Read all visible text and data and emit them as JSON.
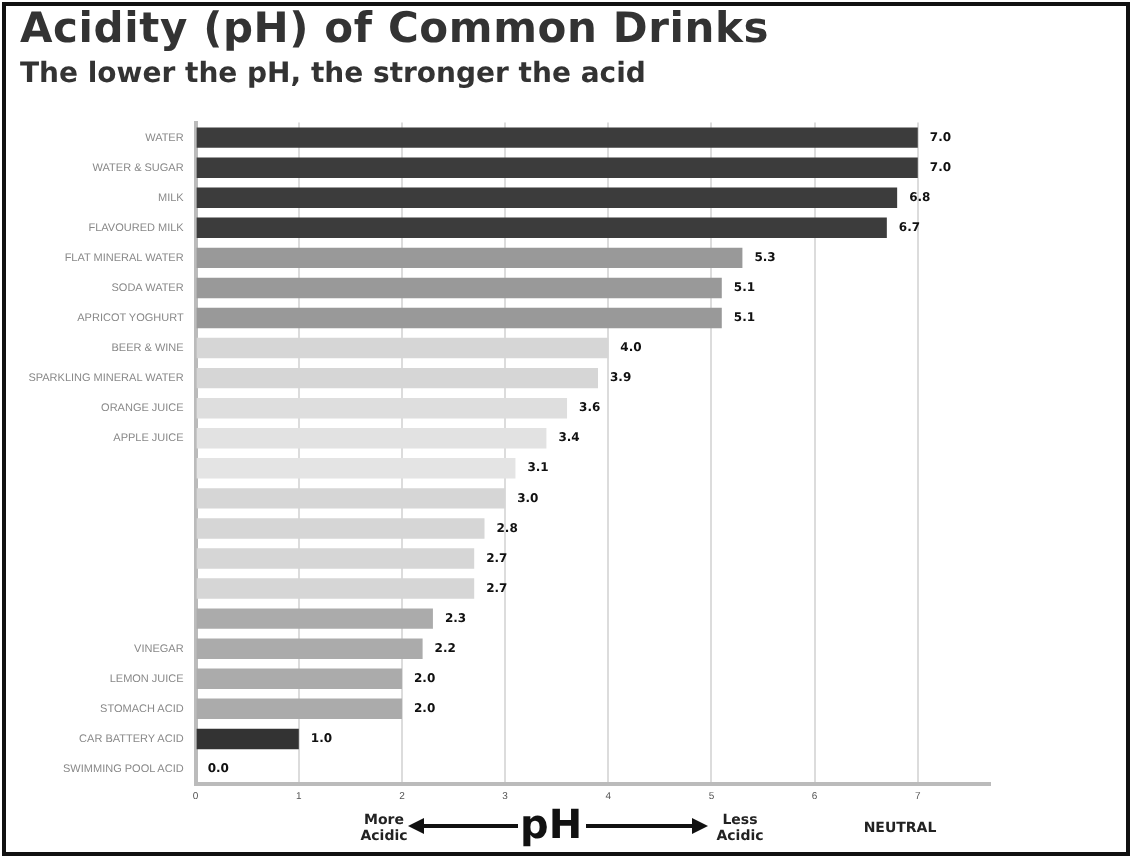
{
  "chart_data": {
    "type": "bar",
    "orientation": "horizontal",
    "title": "Acidity (pH) of Common Drinks",
    "subtitle": "The lower the pH, the stronger the acid",
    "xlabel": "pH",
    "categories": [
      "WATER",
      "WATER & SUGAR",
      "MILK",
      "FLAVOURED MILK",
      "FLAT MINERAL WATER",
      "SODA WATER",
      "APRICOT YOGHURT",
      "BEER & WINE",
      "SPARKLING MINERAL WATER",
      "ORANGE JUICE",
      "APPLE JUICE",
      null,
      null,
      null,
      null,
      null,
      null,
      "VINEGAR",
      "LEMON JUICE",
      "STOMACH ACID",
      "CAR BATTERY ACID",
      "SWIMMING POOL ACID"
    ],
    "values": [
      7.0,
      7.0,
      6.8,
      6.7,
      5.3,
      5.1,
      5.1,
      4.0,
      3.9,
      3.6,
      3.4,
      3.1,
      3.0,
      2.8,
      2.7,
      2.7,
      2.3,
      2.2,
      2.0,
      2.0,
      1.0,
      0.0
    ],
    "value_labels": [
      "7.0",
      "7.0",
      "6.8",
      "6.7",
      "5.3",
      "5.1",
      "5.1",
      "4.0",
      "3.9",
      "3.6",
      "3.4",
      "3.1",
      "3.0",
      "2.8",
      "2.7",
      "2.7",
      "2.3",
      "2.2",
      "2.0",
      "2.0",
      "1.0",
      "0.0"
    ],
    "colors": [
      "#3c3c3c",
      "#3c3c3c",
      "#3c3c3c",
      "#3c3c3c",
      "#999999",
      "#999999",
      "#999999",
      "#d6d6d6",
      "#d6d6d6",
      "#dedede",
      "#e2e2e2",
      "#e4e4e4",
      "#d6d6d6",
      "#d6d6d6",
      "#d6d6d6",
      "#d6d6d6",
      "#ababab",
      "#ababab",
      "#ababab",
      "#ababab",
      "#333333",
      "#111111"
    ],
    "xlim": [
      0,
      7.7
    ],
    "xticks": [
      0,
      1,
      2,
      3,
      4,
      5,
      6,
      7
    ],
    "grid": "x",
    "legend": false,
    "annotations": [
      "More Acidic",
      "Less Acidic",
      "NEUTRAL"
    ]
  }
}
